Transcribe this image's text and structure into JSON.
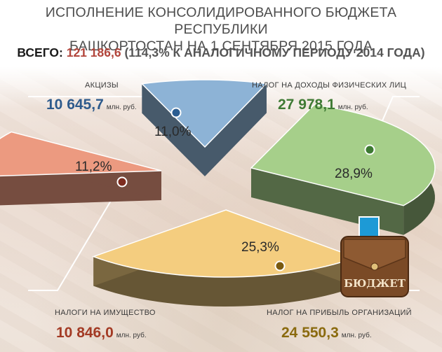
{
  "header": {
    "title": "ИСПОЛНЕНИЕ КОНСОЛИДИРОВАННОГО БЮДЖЕТА РЕСПУБЛИКИ\nБАШКОРТОСТАН НА 1 СЕНТЯБРЯ 2015 ГОДА",
    "total_label": "ВСЕГО:",
    "total_value": "121 186,6",
    "total_note": "(114,3% К АНАЛОГИЧНОМУ ПЕРИОДУ 2014 ГОДА)"
  },
  "badge": {
    "text": "БЮДЖЕТ"
  },
  "colors": {
    "excise": "#8db3d6",
    "income_tax": "#a6cf8a",
    "profit_tax": "#f4cd7f",
    "property_tax": "#ec9a80",
    "excise_text": "#2d5a8c",
    "income_text": "#3f7a34",
    "profit_text": "#8a6a0e",
    "property_text": "#a33a24"
  },
  "chart_data": {
    "type": "pie",
    "title": "ИСПОЛНЕНИЕ КОНСОЛИДИРОВАННОГО БЮДЖЕТА РЕСПУБЛИКИ БАШКОРТОСТАН НА 1 СЕНТЯБРЯ 2015 ГОДА",
    "unit": "млн. руб.",
    "slices": [
      {
        "label": "АКЦИЗЫ",
        "value": 10645.7,
        "value_text": "10 645,7",
        "percent": 11.0,
        "percent_text": "11,0%"
      },
      {
        "label": "НАЛОГ НА ДОХОДЫ ФИЗИЧЕСКИХ ЛИЦ",
        "value": 27978.1,
        "value_text": "27 978,1",
        "percent": 28.9,
        "percent_text": "28,9%"
      },
      {
        "label": "НАЛОГ НА ПРИБЫЛЬ ОРГАНИЗАЦИЙ",
        "value": 24550.3,
        "value_text": "24 550,3",
        "percent": 25.3,
        "percent_text": "25,3%"
      },
      {
        "label": "НАЛОГИ НА ИМУЩЕСТВО",
        "value": 10846.0,
        "value_text": "10 846,0",
        "percent": 11.2,
        "percent_text": "11,2%"
      }
    ]
  }
}
